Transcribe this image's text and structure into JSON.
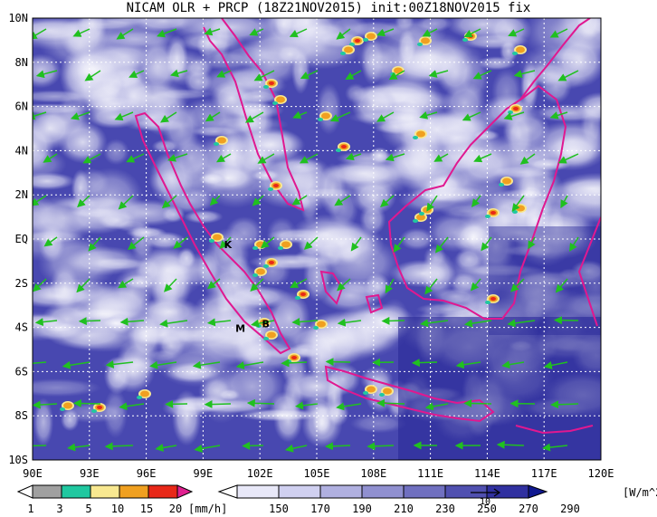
{
  "title": "NICAM OLR + PRCP (18Z21NOV2015) init:00Z18NOV2015 fix",
  "map": {
    "lon_ticks": [
      "90E",
      "93E",
      "96E",
      "99E",
      "102E",
      "105E",
      "108E",
      "111E",
      "114E",
      "117E",
      "120E"
    ],
    "lat_ticks": [
      "10N",
      "8N",
      "6N",
      "4N",
      "2N",
      "EQ",
      "2S",
      "4S",
      "6S",
      "8S",
      "10S"
    ],
    "lon_range": [
      90,
      120
    ],
    "lat_range": [
      -10,
      10
    ],
    "grid": "dotted",
    "place_markers": [
      {
        "label": "K",
        "lon": 100.3,
        "lat": -0.2
      },
      {
        "label": "M",
        "lon": 100.9,
        "lat": -4.0
      },
      {
        "label": "B",
        "lon": 102.3,
        "lat": -3.8
      }
    ]
  },
  "precip_colorbar": {
    "levels": [
      "1",
      "3",
      "5",
      "10",
      "15",
      "20"
    ],
    "colors": [
      "#a0a0a0",
      "#20c8a0",
      "#f8e890",
      "#f0a020",
      "#e82818",
      "#e02090"
    ],
    "unit": "[mm/h]"
  },
  "olr_colorbar": {
    "levels": [
      "150",
      "170",
      "190",
      "210",
      "230",
      "250",
      "270",
      "290"
    ],
    "colors": [
      "#ffffff",
      "#e8e8f8",
      "#d0d0f0",
      "#b0b0e0",
      "#9090d0",
      "#7070c0",
      "#5050b0",
      "#3030a0",
      "#101890"
    ],
    "unit": "[W/m^2]",
    "vector_ref": "10"
  },
  "colors": {
    "coastline": "#e01890",
    "wind_vectors": "#20c020",
    "ocean_base": "#3838a8"
  }
}
